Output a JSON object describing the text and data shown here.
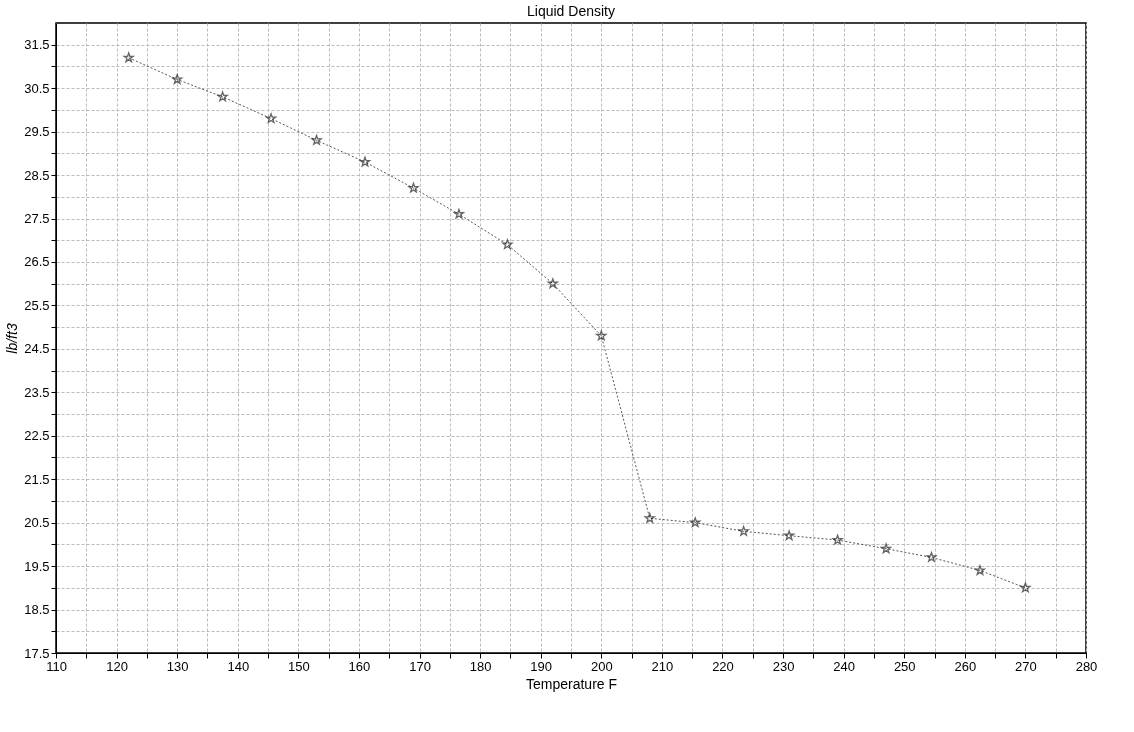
{
  "chart_data": {
    "type": "line",
    "title": "Liquid Density",
    "xlabel": "Temperature F",
    "ylabel": "lb/ft3",
    "x": [
      122,
      130,
      137.5,
      145.5,
      153,
      161,
      169,
      176.5,
      184.5,
      192,
      200,
      208,
      215.5,
      223.5,
      231,
      239,
      247,
      254.5,
      262.5,
      270
    ],
    "series": [
      {
        "color": "#555555",
        "values": [
          31.2,
          30.7,
          30.3,
          29.8,
          29.3,
          28.8,
          28.2,
          27.6,
          26.9,
          26.0,
          24.8,
          20.6,
          20.5,
          20.3,
          20.2,
          20.1,
          19.9,
          19.7,
          19.4,
          19.0
        ]
      }
    ],
    "xlim": [
      110,
      280
    ],
    "xticks": [
      110,
      {
        "value": 115,
        "label": null
      },
      120,
      {
        "value": 125,
        "label": null
      },
      130,
      {
        "value": 135,
        "label": null
      },
      140,
      {
        "value": 145,
        "label": null
      },
      150,
      {
        "value": 155,
        "label": null
      },
      160,
      {
        "value": 165,
        "label": null
      },
      170,
      {
        "value": 175,
        "label": null
      },
      180,
      {
        "value": 185,
        "label": null
      },
      190,
      {
        "value": 195,
        "label": null
      },
      200,
      {
        "value": 205,
        "label": null
      },
      210,
      {
        "value": 215,
        "label": null
      },
      220,
      {
        "value": 225,
        "label": null
      },
      230,
      {
        "value": 235,
        "label": null
      },
      240,
      {
        "value": 245,
        "label": null
      },
      250,
      {
        "value": 255,
        "label": null
      },
      260,
      {
        "value": 265,
        "label": null
      },
      270,
      {
        "value": 275,
        "label": null
      },
      280
    ],
    "ylim": [
      17.5,
      32
    ],
    "yticks": [
      17.5,
      {
        "value": 18,
        "label": null
      },
      18.5,
      {
        "value": 19,
        "label": null
      },
      19.5,
      {
        "value": 20,
        "label": null
      },
      20.5,
      {
        "value": 21,
        "label": null
      },
      21.5,
      {
        "value": 22,
        "label": null
      },
      22.5,
      {
        "value": 23,
        "label": null
      },
      23.5,
      {
        "value": 24,
        "label": null
      },
      24.5,
      {
        "value": 25,
        "label": null
      },
      25.5,
      {
        "value": 26,
        "label": null
      },
      26.5,
      {
        "value": 27,
        "label": null
      },
      27.5,
      {
        "value": 28,
        "label": null
      },
      28.5,
      {
        "value": 29,
        "label": null
      },
      29.5,
      {
        "value": 30,
        "label": null
      },
      30.5,
      {
        "value": 31,
        "label": null
      },
      31.5
    ],
    "grid": true,
    "marker": "star",
    "line_style": "dotted"
  }
}
